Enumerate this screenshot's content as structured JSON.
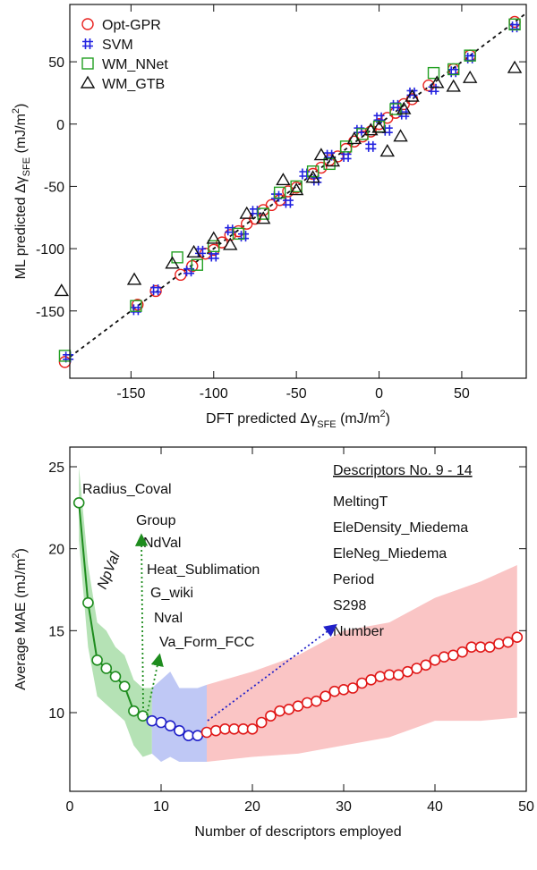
{
  "chart_data": [
    {
      "type": "scatter",
      "xlabel": [
        {
          "text": "DFT predicted Δγ"
        },
        {
          "text": "SFE",
          "shift": "sub"
        },
        {
          "text": " (mJ/m"
        },
        {
          "text": "2",
          "shift": "sup"
        },
        {
          "text": ")"
        }
      ],
      "ylabel": [
        {
          "text": "ML predicted Δγ"
        },
        {
          "text": "SFE",
          "shift": "sub"
        },
        {
          "text": " (mJ/m"
        },
        {
          "text": "2",
          "shift": "sup"
        },
        {
          "text": ")"
        }
      ],
      "xlim": [
        -187,
        89
      ],
      "ylim": [
        -204,
        96
      ],
      "xticks": [
        -150,
        -100,
        -50,
        0,
        50
      ],
      "yticks": [
        -150,
        -100,
        -50,
        0,
        50
      ],
      "legend": "upper left",
      "diagonal": true,
      "series": [
        {
          "name": "Opt-GPR",
          "color": "#e8211e",
          "marker": "circle",
          "x": [
            -190,
            -146,
            -135,
            -120,
            -113,
            -105,
            -100,
            -95,
            -90,
            -85,
            -80,
            -75,
            -70,
            -65,
            -60,
            -55,
            -50,
            -40,
            -35,
            -30,
            -25,
            -20,
            -15,
            -10,
            -5,
            0,
            5,
            10,
            15,
            20,
            30,
            45,
            55,
            82
          ],
          "y": [
            -191,
            -145,
            -134,
            -121,
            -114,
            -104,
            -101,
            -95,
            -89,
            -86,
            -80,
            -76,
            -69,
            -65,
            -61,
            -54,
            -51,
            -40,
            -35,
            -29,
            -26,
            -20,
            -14,
            -10,
            -6,
            0,
            5,
            9,
            16,
            20,
            31,
            44,
            55,
            82
          ]
        },
        {
          "name": "SVM",
          "color": "#2222e0",
          "marker": "hash",
          "x": [
            -188,
            -147,
            -135,
            -115,
            -108,
            -100,
            -90,
            -82,
            -75,
            -62,
            -55,
            -45,
            -38,
            -30,
            -20,
            -12,
            -5,
            0,
            5,
            10,
            15,
            20,
            33,
            45,
            55,
            82
          ],
          "y": [
            -187,
            -149,
            -133,
            -118,
            -102,
            -106,
            -85,
            -90,
            -70,
            -58,
            -63,
            -40,
            -45,
            -25,
            -26,
            -5,
            -18,
            5,
            -5,
            15,
            8,
            25,
            28,
            42,
            53,
            78
          ]
        },
        {
          "name": "WM_NNet",
          "color": "#22a022",
          "marker": "square",
          "x": [
            -190,
            -147,
            -122,
            -110,
            -100,
            -85,
            -70,
            -60,
            -50,
            -40,
            -30,
            -20,
            -10,
            0,
            10,
            33,
            45,
            55,
            82
          ],
          "y": [
            -186,
            -146,
            -107,
            -113,
            -98,
            -88,
            -72,
            -55,
            -50,
            -38,
            -32,
            -18,
            -8,
            -2,
            12,
            41,
            44,
            55,
            80
          ]
        },
        {
          "name": "WM_GTB",
          "color": "#111111",
          "marker": "triangle",
          "x": [
            -192,
            -148,
            -125,
            -112,
            -100,
            -90,
            -80,
            -70,
            -58,
            -50,
            -40,
            -35,
            -28,
            -15,
            -5,
            0,
            5,
            13,
            15,
            20,
            35,
            45,
            55,
            82
          ],
          "y": [
            -134,
            -125,
            -112,
            -103,
            -92,
            -97,
            -72,
            -76,
            -45,
            -53,
            -43,
            -25,
            -30,
            -12,
            -5,
            -3,
            -22,
            -10,
            12,
            22,
            33,
            30,
            37,
            45
          ]
        }
      ]
    },
    {
      "type": "line",
      "xlabel": [
        {
          "text": "Number of descriptors employed"
        }
      ],
      "ylabel": [
        {
          "text": "Average MAE (mJ/m"
        },
        {
          "text": "2",
          "shift": "sup"
        },
        {
          "text": ")"
        }
      ],
      "xlim": [
        0,
        50
      ],
      "ylim": [
        5.2,
        26.2
      ],
      "xticks": [
        0,
        10,
        20,
        30,
        40,
        50
      ],
      "yticks": [
        10,
        15,
        20,
        25
      ],
      "bands": [
        {
          "color": "#9cd89c",
          "x": [
            1,
            2,
            3,
            4,
            5,
            6,
            7,
            8,
            9
          ],
          "lower": [
            20.5,
            14,
            11,
            10.5,
            10,
            9.5,
            8,
            7.3,
            7.5
          ],
          "upper": [
            25,
            19,
            15.5,
            15,
            14,
            13.5,
            12,
            11.5,
            11.5
          ]
        },
        {
          "color": "#a9b6f2",
          "x": [
            9,
            10,
            11,
            12,
            13,
            14,
            15
          ],
          "lower": [
            7.5,
            7,
            7.3,
            7,
            7,
            7,
            7
          ],
          "upper": [
            11.5,
            12,
            12.5,
            11.5,
            11.5,
            11.5,
            11.7
          ]
        },
        {
          "color": "#f8b2b2",
          "x": [
            15,
            20,
            25,
            30,
            35,
            40,
            45,
            49
          ],
          "lower": [
            7,
            7.3,
            7.5,
            8,
            8.5,
            9.5,
            9.5,
            9.7
          ],
          "upper": [
            11.7,
            12.5,
            13.5,
            15,
            15.5,
            17,
            18,
            19
          ]
        }
      ],
      "series": [
        {
          "color": "#1e8c1e",
          "x": [
            1,
            2,
            3,
            4,
            5,
            6,
            7,
            8
          ],
          "values": [
            22.8,
            16.7,
            13.2,
            12.7,
            12.2,
            11.6,
            10.1,
            9.8
          ]
        },
        {
          "color": "#2020c8",
          "x": [
            9,
            10,
            11,
            12,
            13,
            14
          ],
          "values": [
            9.5,
            9.4,
            9.2,
            8.9,
            8.6,
            8.6
          ]
        },
        {
          "color": "#e01818",
          "x": [
            15,
            16,
            17,
            18,
            19,
            20,
            21,
            22,
            23,
            24,
            25,
            26,
            27,
            28,
            29,
            30,
            31,
            32,
            33,
            34,
            35,
            36,
            37,
            38,
            39,
            40,
            41,
            42,
            43,
            44,
            45,
            46,
            47,
            48,
            49
          ],
          "values": [
            8.8,
            8.9,
            9.0,
            9.0,
            9.0,
            9.0,
            9.4,
            9.8,
            10.1,
            10.2,
            10.4,
            10.6,
            10.7,
            11.0,
            11.3,
            11.4,
            11.5,
            11.8,
            12.0,
            12.2,
            12.3,
            12.3,
            12.5,
            12.7,
            12.9,
            13.2,
            13.4,
            13.5,
            13.7,
            14.0,
            14.0,
            14.0,
            14.2,
            14.3,
            14.6
          ]
        }
      ],
      "annotations": {
        "green": [
          "Radius_Coval",
          "NpVal",
          "Group",
          "NdVal",
          "Heat_Sublimation",
          "G_wiki",
          "Nval",
          "Va_Form_FCC"
        ],
        "blue_title": "Descriptors No. 9 - 14",
        "blue": [
          "MeltingT",
          "EleDensity_Miedema",
          "EleNeg_Miedema",
          "Period",
          "S298",
          "Number"
        ]
      }
    }
  ]
}
